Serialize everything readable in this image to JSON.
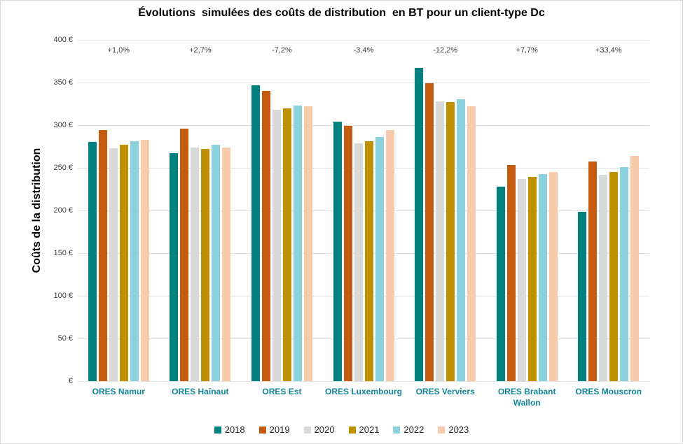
{
  "chart_data": {
    "type": "bar",
    "title": "Évolutions  simulées des coûts de distribution  en BT pour un client-type Dc",
    "ylabel": "Coûts de la distribution",
    "xlabel": "",
    "ylim": [
      0,
      400
    ],
    "ytick_step": 50,
    "ytick_labels": [
      "400 €",
      "350 €",
      "300 €",
      "250 €",
      "200 €",
      "150 €",
      "100 €",
      "50 €",
      "€"
    ],
    "grid": true,
    "legend_position": "bottom",
    "categories": [
      "ORES Namur",
      "ORES Hainaut",
      "ORES Est",
      "ORES Luxembourg",
      "ORES Verviers",
      "ORES Brabant Wallon",
      "ORES Mouscron"
    ],
    "annotations": [
      "+1,0%",
      "+2,7%",
      "-7,2%",
      "-3,4%",
      "-12,2%",
      "+7,7%",
      "+33,4%"
    ],
    "series": [
      {
        "name": "2018",
        "color": "#018080",
        "values": [
          280,
          267,
          347,
          304,
          367,
          228,
          198
        ]
      },
      {
        "name": "2019",
        "color": "#c55a11",
        "values": [
          294,
          296,
          340,
          299,
          349,
          253,
          257
        ]
      },
      {
        "name": "2020",
        "color": "#d9d9d9",
        "values": [
          273,
          274,
          318,
          279,
          328,
          237,
          242
        ]
      },
      {
        "name": "2021",
        "color": "#bf9000",
        "values": [
          277,
          272,
          320,
          281,
          327,
          239,
          245
        ]
      },
      {
        "name": "2022",
        "color": "#8cd2dc",
        "values": [
          281,
          277,
          323,
          286,
          330,
          243,
          251
        ]
      },
      {
        "name": "2023",
        "color": "#f8cbad",
        "values": [
          283,
          274,
          322,
          294,
          322,
          245,
          264
        ]
      }
    ],
    "colors": {
      "category_label": "#12869a",
      "axis_text": "#404040",
      "gridline": "#e0e0e0",
      "title_text": "#000000"
    }
  }
}
